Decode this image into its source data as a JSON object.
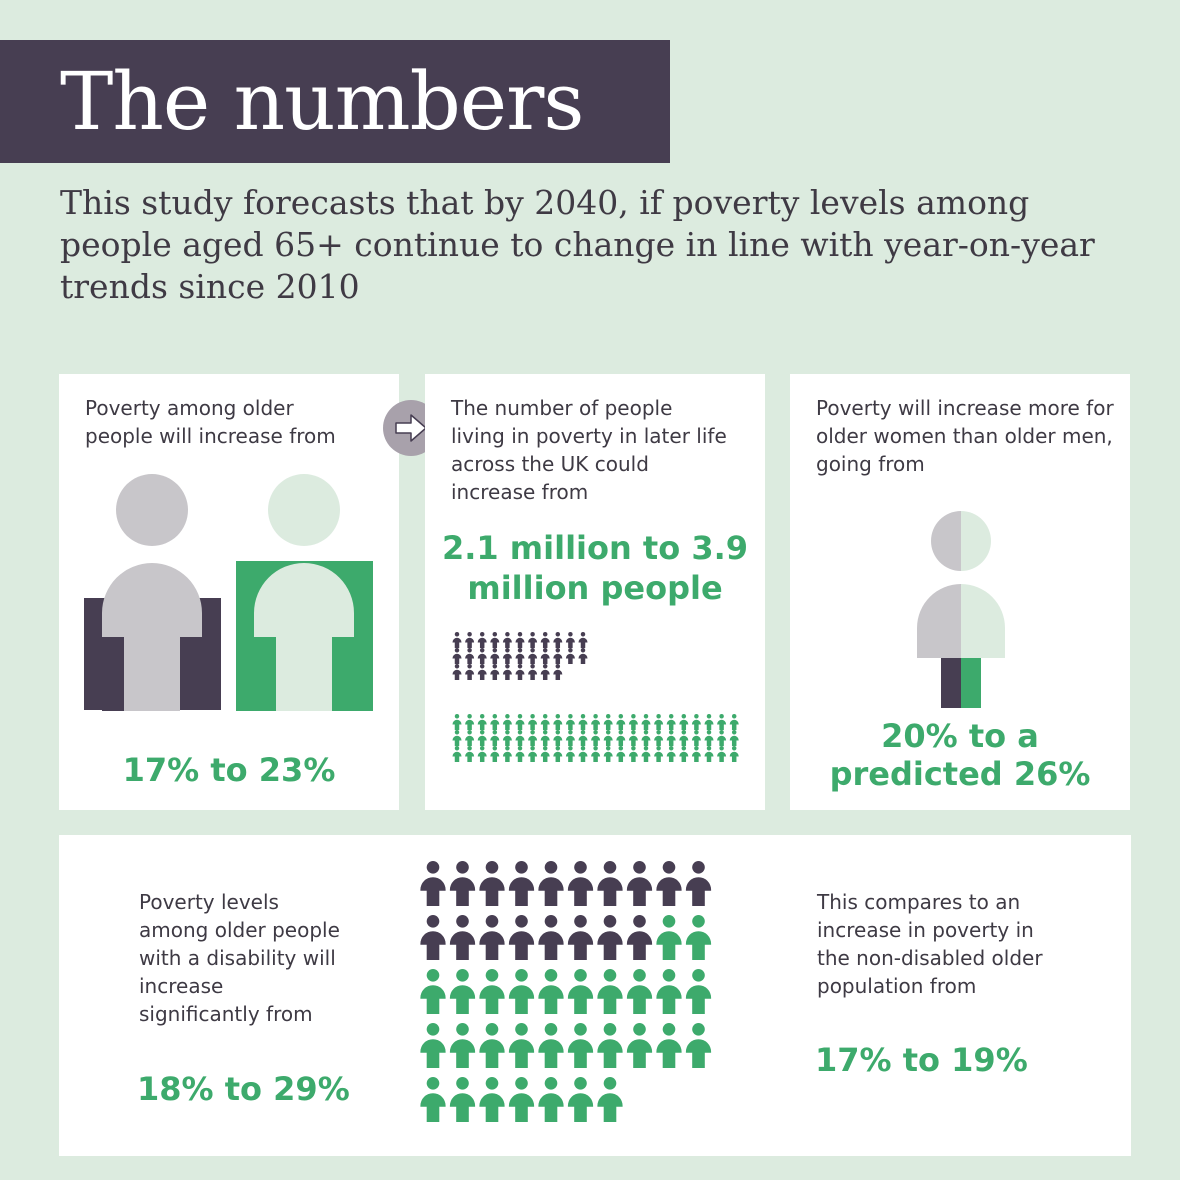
{
  "header": {
    "title": "The numbers",
    "intro": "This study forecasts that by 2040, if poverty levels among people aged 65+ continue to change in line with year-on-year trends since 2010"
  },
  "colors": {
    "background": "#dcebdf",
    "header_bg": "#473e52",
    "dark_purple": "#473e52",
    "grey": "#c8c6ca",
    "green": "#3daa6c",
    "pale_green": "#dcebdf",
    "arrow_circle": "#a8a1ab"
  },
  "card_poverty_older": {
    "text": "Poverty among older people will increase from",
    "stat": "17% to 23%",
    "from_percent": 17,
    "to_percent": 23
  },
  "card_people_in_poverty": {
    "arrow_icon": "right-arrow-icon",
    "text": "The number of people living in poverty in later life across the UK could increase from",
    "stat": "2.1 million to 3.9 million people",
    "from_millions": 2.1,
    "to_millions": 3.9
  },
  "card_women_men": {
    "text": "Poverty will increase more for older women than older men, going from",
    "stat_line1": "20% to a",
    "stat_line2": "predicted 26%",
    "from_percent": 20,
    "to_percent": 26
  },
  "card_disability": {
    "text": "Poverty levels among older people with a disability will increase significantly from",
    "stat": "18% to 29%",
    "from_percent": 18,
    "to_percent": 29,
    "compare_text": "This compares to an increase in poverty in the non-disabled older population from",
    "compare_stat": "17% to 19%",
    "compare_from_percent": 17,
    "compare_to_percent": 19
  }
}
